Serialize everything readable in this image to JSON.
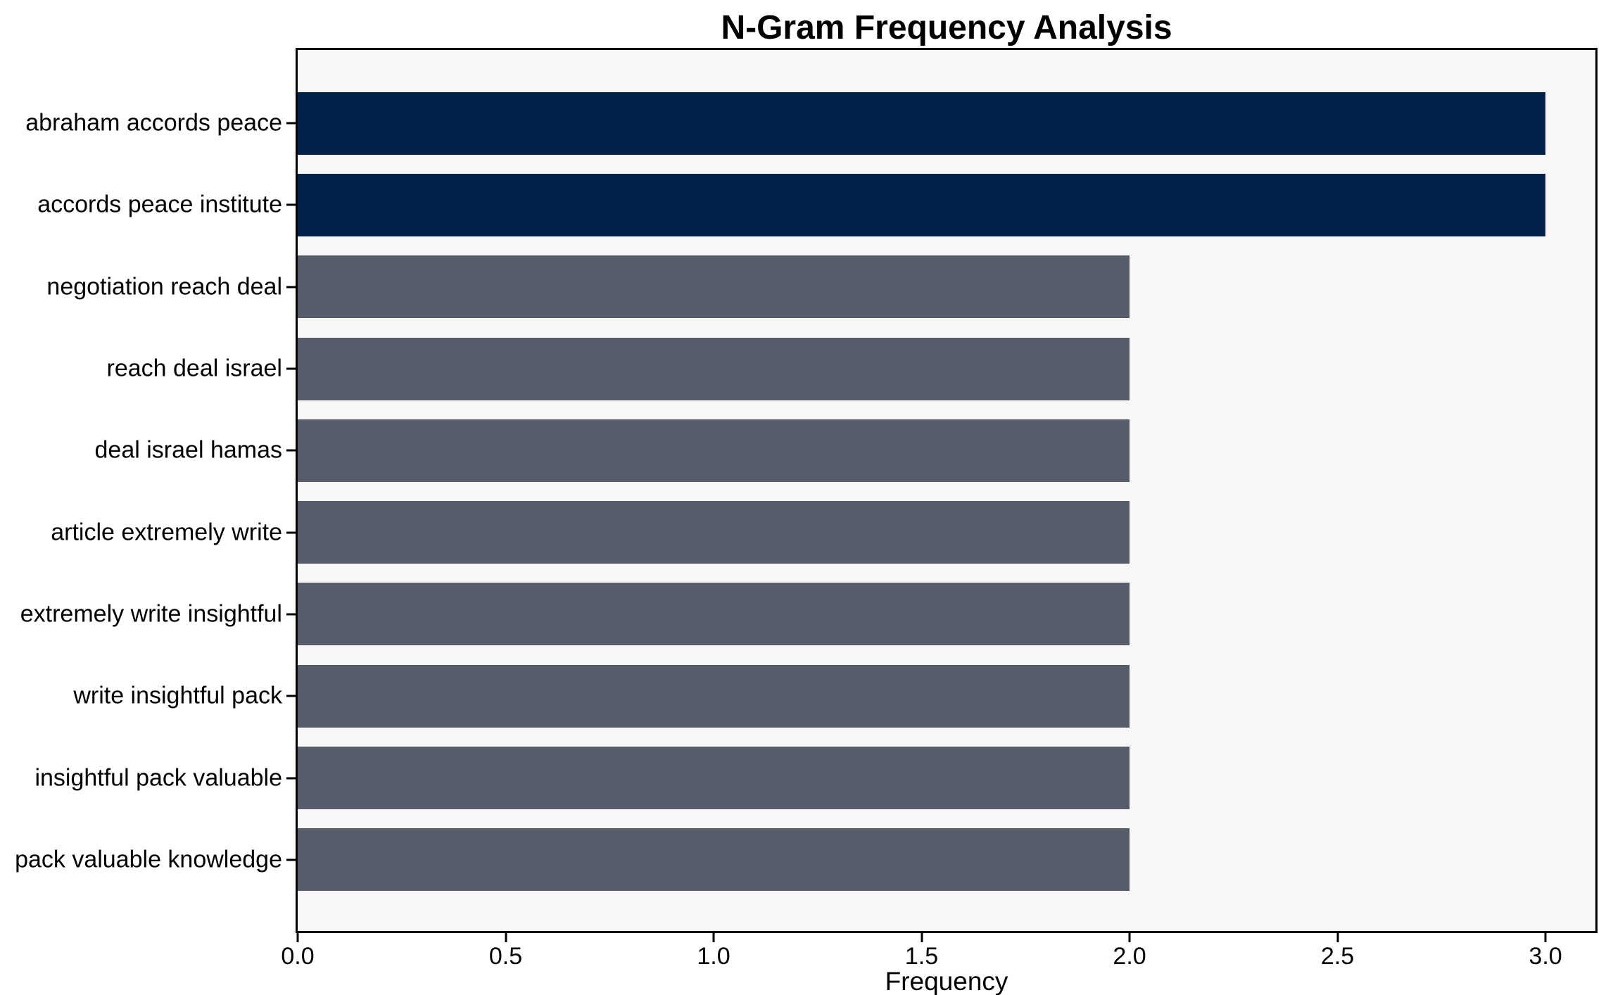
{
  "chart_data": {
    "type": "bar",
    "orientation": "horizontal",
    "title": "N-Gram Frequency Analysis",
    "xlabel": "Frequency",
    "categories": [
      "abraham accords peace",
      "accords peace institute",
      "negotiation reach deal",
      "reach deal israel",
      "deal israel hamas",
      "article extremely write",
      "extremely write insightful",
      "write insightful pack",
      "insightful pack valuable",
      "pack valuable knowledge"
    ],
    "values": [
      3,
      3,
      2,
      2,
      2,
      2,
      2,
      2,
      2,
      2
    ],
    "bar_colors": [
      "#012149",
      "#012149",
      "#575d6b",
      "#575d6b",
      "#575d6b",
      "#575d6b",
      "#575d6b",
      "#575d6b",
      "#575d6b",
      "#575d6b"
    ],
    "highlight_color": "#012149",
    "base_color": "#575d6b",
    "plot_background": "#f7f7f7",
    "x_ticks": [
      "0.0",
      "0.5",
      "1.0",
      "1.5",
      "2.0",
      "2.5",
      "3.0"
    ],
    "x_tick_values": [
      0,
      0.5,
      1,
      1.5,
      2,
      2.5,
      3
    ],
    "xlim": [
      0,
      3.12
    ],
    "grid": false
  }
}
